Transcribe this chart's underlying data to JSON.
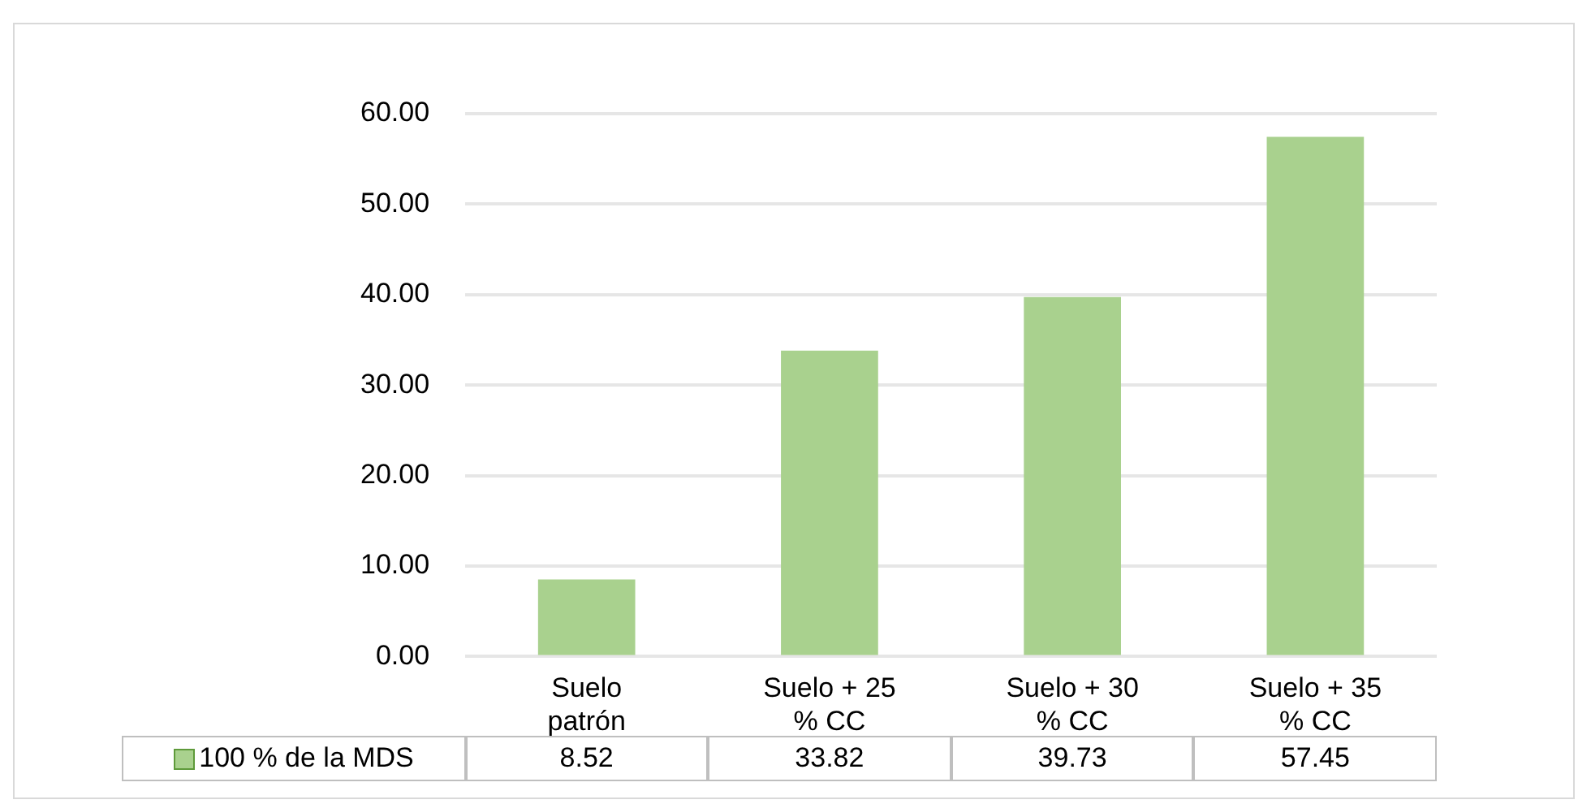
{
  "chart_data": {
    "type": "bar",
    "categories": [
      "Suelo patrón",
      "Suelo + 25 % CC",
      "Suelo + 30 % CC",
      "Suelo + 35 % CC"
    ],
    "series": [
      {
        "name": "100 % de la MDS",
        "color": "#a9d18e",
        "values": [
          8.52,
          33.82,
          39.73,
          57.45
        ]
      }
    ],
    "ylim": [
      0,
      60
    ],
    "yticks": [
      {
        "value": 0,
        "label": "0.00"
      },
      {
        "value": 10,
        "label": "10.00"
      },
      {
        "value": 20,
        "label": "20.00"
      },
      {
        "value": 30,
        "label": "30.00"
      },
      {
        "value": 40,
        "label": "40.00"
      },
      {
        "value": 50,
        "label": "50.00"
      },
      {
        "value": 60,
        "label": "60.00"
      }
    ],
    "grid": "y",
    "legend": "bottom",
    "data_labels": true
  }
}
